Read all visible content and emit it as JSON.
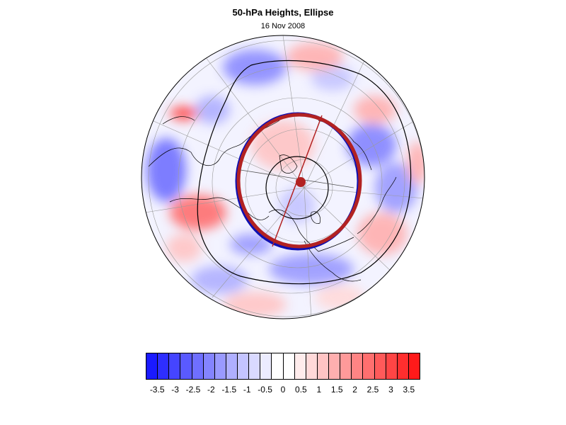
{
  "title": "50-hPa Heights, Ellipse",
  "subtitle": "16 Nov 2008",
  "colors": {
    "negative": "#1a1aff",
    "positive": "#ff1a1a",
    "ellipse_outline": "#b22222",
    "ellipse_alt": "#1010b0",
    "contour": "#000000"
  },
  "colorbar": {
    "colors": [
      "#1a1aff",
      "#2e2eff",
      "#4545ff",
      "#5a5aff",
      "#6f6fff",
      "#8484ff",
      "#9a9aff",
      "#afafff",
      "#c4c4ff",
      "#d9d9ff",
      "#ececff",
      "#ffffff",
      "#ffffff",
      "#ffecec",
      "#ffd9d9",
      "#ffc4c4",
      "#ffafaf",
      "#ff9a9a",
      "#ff8484",
      "#ff6f6f",
      "#ff5a5a",
      "#ff4545",
      "#ff2e2e",
      "#ff1a1a"
    ],
    "tick_labels": [
      "-3.5",
      "-3",
      "-2.5",
      "-2",
      "-1.5",
      "-1",
      "-0.5",
      "0",
      "0.5",
      "1",
      "1.5",
      "2",
      "2.5",
      "3",
      "3.5"
    ]
  },
  "map": {
    "projection": "north polar stereographic",
    "features": [
      "coastlines",
      "lat-lon grid",
      "height contours",
      "fitted ellipse",
      "vortex center marker"
    ]
  }
}
